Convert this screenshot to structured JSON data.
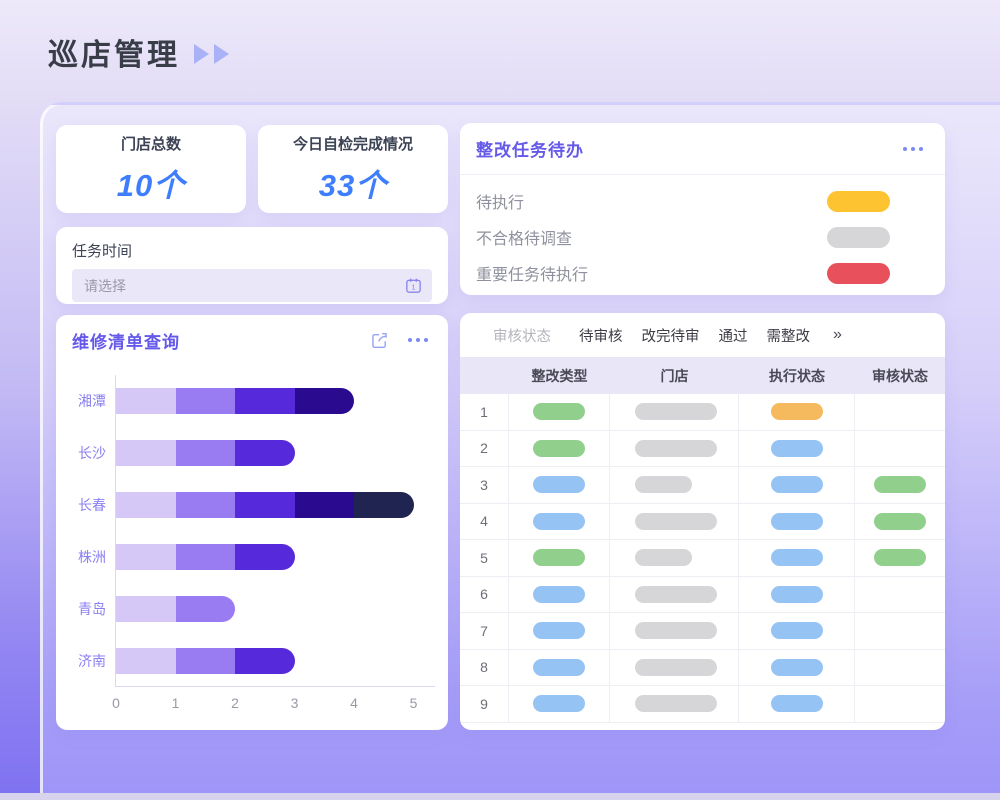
{
  "page": {
    "title": "巡店管理"
  },
  "colors": {
    "accent_purple": "#6559ea",
    "value_blue": "#3e7efd",
    "page_gradient_top": "#ede9fa",
    "page_gradient_bottom": "#7f72f1",
    "panel_gradient_top": "#eae7fb",
    "panel_gradient_bottom": "#9e95f8"
  },
  "palette": {
    "green": "#90d08c",
    "blue": "#95c3f3",
    "gray": "#d6d6d8",
    "orange": "#f6ba5e",
    "yellow": "#fdc330",
    "red": "#e8505b"
  },
  "stats": [
    {
      "label": "门店总数",
      "value": "10个"
    },
    {
      "label": "今日自检完成情况",
      "value": "33个"
    }
  ],
  "task_time": {
    "label": "任务时间",
    "placeholder": "请选择",
    "icon": "calendar-icon"
  },
  "todo": {
    "title": "整改任务待办",
    "menu_icon": "ellipsis-icon",
    "items": [
      {
        "label": "待执行",
        "color": "yellow"
      },
      {
        "label": "不合格待调查",
        "color": "gray"
      },
      {
        "label": "重要任务待执行",
        "color": "red"
      }
    ]
  },
  "repair": {
    "title": "维修清单查询",
    "icons": [
      "share-icon",
      "ellipsis-icon"
    ]
  },
  "chart_data": {
    "type": "bar",
    "orientation": "horizontal",
    "stacked": true,
    "title": "维修清单查询",
    "categories": [
      "湘潭",
      "长沙",
      "长春",
      "株洲",
      "青岛",
      "济南"
    ],
    "series": [
      {
        "name": "段1",
        "color": "#d5c8f6",
        "values": [
          1,
          1,
          1,
          1,
          1,
          1
        ]
      },
      {
        "name": "段2",
        "color": "#9a7cf2",
        "values": [
          1,
          1,
          1,
          1,
          1,
          1
        ]
      },
      {
        "name": "段3",
        "color": "#5629da",
        "values": [
          1,
          1,
          1,
          1,
          0,
          1
        ]
      },
      {
        "name": "段4",
        "color": "#2a0b8f",
        "values": [
          1,
          0,
          1,
          0,
          0,
          0
        ]
      },
      {
        "name": "段5",
        "color": "#202450",
        "values": [
          0,
          0,
          1,
          0,
          0,
          0
        ]
      }
    ],
    "totals": [
      4,
      3,
      5,
      3,
      2,
      3
    ],
    "xlim": [
      0,
      5
    ],
    "xticks": [
      "0",
      "1",
      "2",
      "3",
      "4",
      "5"
    ],
    "grid": false,
    "legend": false
  },
  "review": {
    "filter_label": "审核状态",
    "tabs": [
      "待审核",
      "改完待审",
      "通过",
      "需整改"
    ],
    "more_label": "»",
    "columns": [
      "整改类型",
      "门店",
      "执行状态",
      "审核状态"
    ],
    "rows": [
      {
        "index": "1",
        "type": "green",
        "store": "wide",
        "exec": "orange",
        "review": ""
      },
      {
        "index": "2",
        "type": "green",
        "store": "wide",
        "exec": "blue",
        "review": ""
      },
      {
        "index": "3",
        "type": "blue",
        "store": "narrow",
        "exec": "blue",
        "review": "green"
      },
      {
        "index": "4",
        "type": "blue",
        "store": "wide",
        "exec": "blue",
        "review": "green"
      },
      {
        "index": "5",
        "type": "green",
        "store": "narrow",
        "exec": "blue",
        "review": "green"
      },
      {
        "index": "6",
        "type": "blue",
        "store": "wide",
        "exec": "blue",
        "review": ""
      },
      {
        "index": "7",
        "type": "blue",
        "store": "wide",
        "exec": "blue",
        "review": ""
      },
      {
        "index": "8",
        "type": "blue",
        "store": "wide",
        "exec": "blue",
        "review": ""
      },
      {
        "index": "9",
        "type": "blue",
        "store": "wide",
        "exec": "blue",
        "review": ""
      }
    ]
  }
}
